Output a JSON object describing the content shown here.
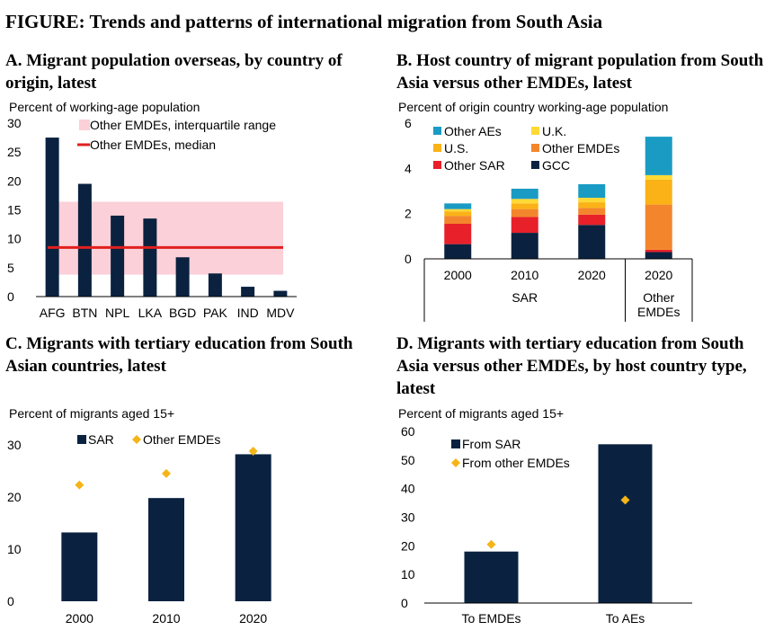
{
  "figure_title": "FIGURE: Trends and patterns of international migration from South Asia",
  "colors": {
    "navy": "#0a2240",
    "pink": "#fbd0d8",
    "red_line": "#e0201e",
    "gold": "#f5b418",
    "teal": "#1a9bc4",
    "yellow": "#ffd935",
    "orange": "#f3862c",
    "red": "#e8202a",
    "amber": "#fbb217"
  },
  "chart_data": [
    {
      "id": "A",
      "type": "bar",
      "title": "A. Migrant population overseas, by country of origin, latest",
      "ylabel": "Percent of working-age population",
      "ylim": [
        0,
        30
      ],
      "yticks": [
        "0",
        "5",
        "10",
        "15",
        "20",
        "25",
        "30"
      ],
      "categories": [
        "AFG",
        "BTN",
        "NPL",
        "LKA",
        "BGD",
        "PAK",
        "IND",
        "MDV"
      ],
      "values": [
        27.5,
        19.5,
        14.0,
        13.5,
        6.8,
        4.0,
        1.7,
        1.0
      ],
      "interquartile_range": [
        3.8,
        16.4
      ],
      "median": 8.5,
      "legend": {
        "range_label": "Other EMDEs, interquartile range",
        "median_label": "Other EMDEs, median"
      }
    },
    {
      "id": "B",
      "type": "bar",
      "title": "B. Host country of migrant population from South Asia versus other EMDEs, latest",
      "ylabel": "Percent of origin country working-age population",
      "ylim": [
        0,
        6
      ],
      "yticks": [
        "0",
        "2",
        "4",
        "6"
      ],
      "categories": [
        "2000",
        "2010",
        "2020",
        "2020"
      ],
      "groups": [
        {
          "label": "SAR",
          "count": 3
        },
        {
          "label": "Other EMDEs",
          "count": 1
        }
      ],
      "series": [
        {
          "name": "GCC",
          "values": [
            0.65,
            1.15,
            1.5,
            0.3
          ]
        },
        {
          "name": "Other SAR",
          "values": [
            0.9,
            0.7,
            0.45,
            0.1
          ]
        },
        {
          "name": "Other EMDEs",
          "values": [
            0.35,
            0.35,
            0.3,
            2.0
          ]
        },
        {
          "name": "U.S.",
          "values": [
            0.2,
            0.25,
            0.25,
            1.1
          ]
        },
        {
          "name": "U.K.",
          "values": [
            0.1,
            0.2,
            0.2,
            0.2
          ]
        },
        {
          "name": "Other AEs",
          "values": [
            0.25,
            0.45,
            0.6,
            1.7
          ]
        }
      ],
      "legend_order": [
        "Other AEs",
        "U.K.",
        "U.S.",
        "Other EMDEs",
        "Other SAR",
        "GCC"
      ]
    },
    {
      "id": "C",
      "type": "bar",
      "title": "C. Migrants with tertiary education from South Asian countries, latest",
      "ylabel": "Percent of migrants aged 15+",
      "ylim": [
        0,
        30
      ],
      "yticks": [
        "0",
        "10",
        "20",
        "30"
      ],
      "categories": [
        "2000",
        "2010",
        "2020"
      ],
      "series": [
        {
          "name": "SAR",
          "values": [
            13.2,
            19.8,
            28.2
          ]
        },
        {
          "name": "Other EMDEs",
          "values": [
            22.3,
            24.5,
            28.8
          ]
        }
      ]
    },
    {
      "id": "D",
      "type": "bar",
      "title": "D. Migrants with tertiary education from South Asia versus other EMDEs, by host country type, latest",
      "ylabel": "Percent of migrants aged 15+",
      "ylim": [
        0,
        60
      ],
      "yticks": [
        "0",
        "10",
        "20",
        "30",
        "40",
        "50",
        "60"
      ],
      "categories": [
        "To EMDEs",
        "To AEs"
      ],
      "series": [
        {
          "name": "From SAR",
          "values": [
            18,
            55.5
          ]
        },
        {
          "name": "From other EMDEs",
          "values": [
            20.5,
            36
          ]
        }
      ]
    }
  ]
}
